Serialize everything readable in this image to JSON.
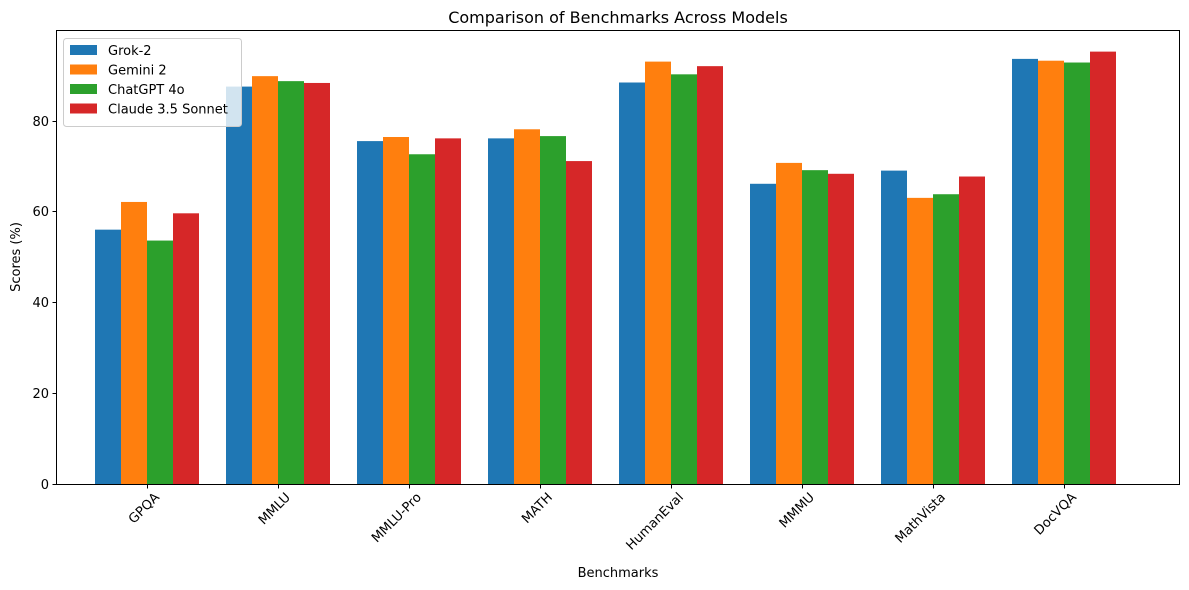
{
  "chart_data": {
    "type": "bar",
    "title": "Comparison of Benchmarks Across Models",
    "xlabel": "Benchmarks",
    "ylabel": "Scores (%)",
    "categories": [
      "GPQA",
      "MMLU",
      "MMLU-Pro",
      "MATH",
      "HumanEval",
      "MMMU",
      "MathVista",
      "DocVQA"
    ],
    "series": [
      {
        "name": "Grok-2",
        "color": "#1f77b4",
        "values": [
          56.0,
          87.5,
          75.5,
          76.1,
          88.4,
          66.1,
          69.0,
          93.6
        ]
      },
      {
        "name": "Gemini 2",
        "color": "#ff7f0e",
        "values": [
          62.1,
          89.8,
          76.4,
          78.1,
          93.0,
          70.7,
          63.0,
          93.2
        ]
      },
      {
        "name": "ChatGPT 4o",
        "color": "#2ca02c",
        "values": [
          53.6,
          88.7,
          72.6,
          76.6,
          90.2,
          69.1,
          63.8,
          92.8
        ]
      },
      {
        "name": "Claude 3.5 Sonnet",
        "color": "#d62728",
        "values": [
          59.6,
          88.3,
          76.1,
          71.1,
          92.0,
          68.3,
          67.7,
          95.2
        ]
      }
    ],
    "yticks": [
      0,
      20,
      40,
      60,
      80
    ],
    "ylim": [
      0,
      99.96
    ],
    "grid": false,
    "legend_position": "top-left"
  }
}
